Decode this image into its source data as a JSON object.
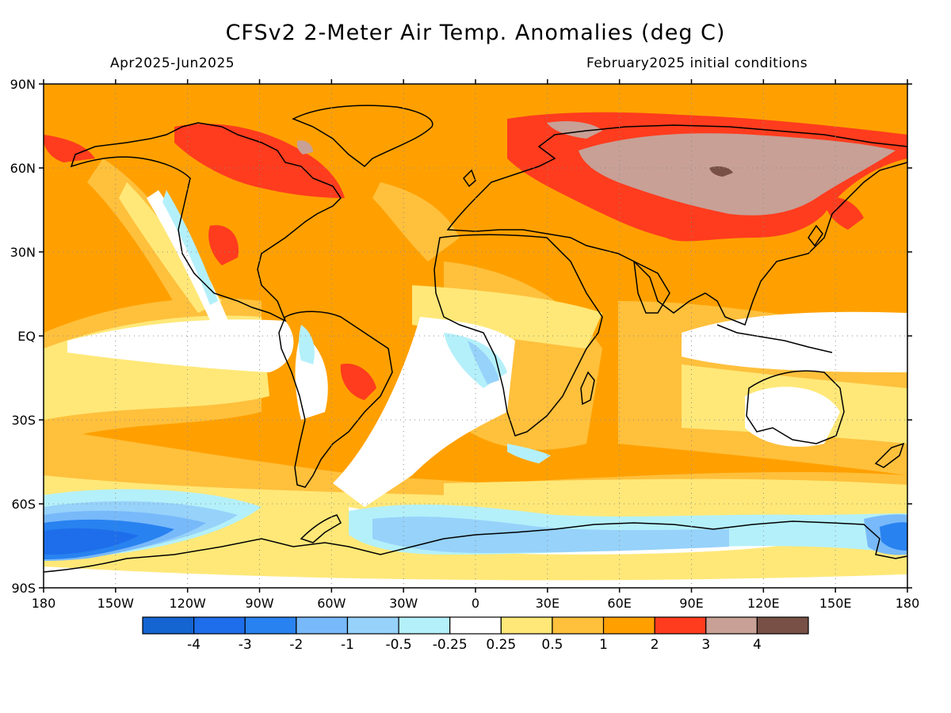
{
  "header": {
    "title": "CFSv2 2-Meter Air Temp. Anomalies (deg C)",
    "period": "Apr2025-Jun2025",
    "initial_conditions": "February2025 initial conditions"
  },
  "axes": {
    "lat_ticks": [
      {
        "lat": 90,
        "label": "90N"
      },
      {
        "lat": 60,
        "label": "60N"
      },
      {
        "lat": 30,
        "label": "30N"
      },
      {
        "lat": 0,
        "label": "EQ"
      },
      {
        "lat": -30,
        "label": "30S"
      },
      {
        "lat": -60,
        "label": "60S"
      },
      {
        "lat": -90,
        "label": "90S"
      }
    ],
    "lon_ticks": [
      {
        "lon": 0,
        "label": "180"
      },
      {
        "lon": 30,
        "label": "150W"
      },
      {
        "lon": 60,
        "label": "120W"
      },
      {
        "lon": 90,
        "label": "90W"
      },
      {
        "lon": 120,
        "label": "60W"
      },
      {
        "lon": 150,
        "label": "30W"
      },
      {
        "lon": 180,
        "label": "0"
      },
      {
        "lon": 210,
        "label": "30E"
      },
      {
        "lon": 240,
        "label": "60E"
      },
      {
        "lon": 270,
        "label": "90E"
      },
      {
        "lon": 300,
        "label": "120E"
      },
      {
        "lon": 330,
        "label": "150E"
      },
      {
        "lon": 360,
        "label": "180"
      }
    ]
  },
  "colorbar": {
    "colors": [
      "#1464d2",
      "#1e6eeb",
      "#2882f0",
      "#78b9fa",
      "#96d2fa",
      "#b4f0fa",
      "#ffffff",
      "#ffe878",
      "#ffc03c",
      "#ffa000",
      "#ff3c1e",
      "#c8a096",
      "#785046"
    ],
    "labels": [
      "-4",
      "-3",
      "-2",
      "-1",
      "-0.5",
      "-0.25",
      "0.25",
      "0.5",
      "1",
      "2",
      "3",
      "4"
    ]
  },
  "colors": {
    "ocean_base": "#ffa000",
    "coastline": "#000000"
  }
}
